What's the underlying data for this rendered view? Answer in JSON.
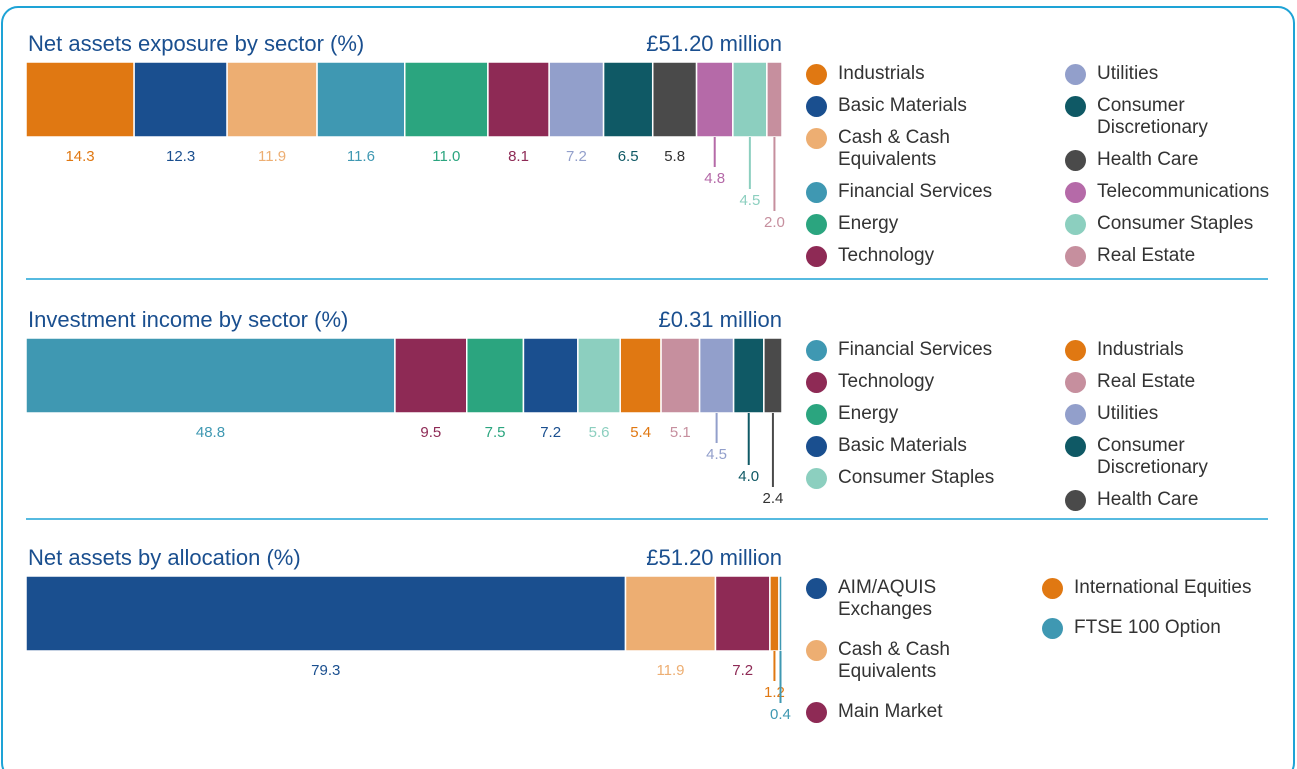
{
  "chart_data": [
    {
      "type": "stacked_bar",
      "title": "Net assets exposure by sector (%)",
      "subtitle": "£51.20 million",
      "legend_columns": 2,
      "series": [
        {
          "name": "Industrials",
          "color": "#e07812",
          "values": [
            14.3
          ]
        },
        {
          "name": "Basic Materials",
          "color": "#1a4f8f",
          "values": [
            12.3
          ]
        },
        {
          "name": "Cash & Cash Equivalents",
          "color": "#edae72",
          "values": [
            11.9
          ]
        },
        {
          "name": "Financial Services",
          "color": "#3f98b2",
          "values": [
            11.6
          ]
        },
        {
          "name": "Energy",
          "color": "#2ba57f",
          "values": [
            11
          ],
          "value_labels": [
            "11.0"
          ]
        },
        {
          "name": "Technology",
          "color": "#8e2a55",
          "values": [
            8.1
          ]
        },
        {
          "name": "Utilities",
          "color": "#929fcb",
          "values": [
            7.2
          ]
        },
        {
          "name": "Consumer Discretionary",
          "color": "#0f5965",
          "values": [
            6.5
          ]
        },
        {
          "name": "Health Care",
          "color": "#4a4a4a",
          "values": [
            5.8
          ]
        },
        {
          "name": "Telecommunications",
          "color": "#b56aa8",
          "values": [
            4.8
          ]
        },
        {
          "name": "Consumer Staples",
          "color": "#8ccfbf",
          "values": [
            4.5
          ]
        },
        {
          "name": "Real Estate",
          "color": "#c68f9e",
          "values": [
            2
          ],
          "value_labels": [
            "2.0"
          ]
        }
      ]
    },
    {
      "type": "stacked_bar",
      "title": "Investment income by sector (%)",
      "subtitle": "£0.31 million",
      "legend_columns": 2,
      "series": [
        {
          "name": "Financial Services",
          "color": "#3f98b2",
          "values": [
            48.8
          ]
        },
        {
          "name": "Technology",
          "color": "#8e2a55",
          "values": [
            9.5
          ]
        },
        {
          "name": "Energy",
          "color": "#2ba57f",
          "values": [
            7.5
          ]
        },
        {
          "name": "Basic Materials",
          "color": "#1a4f8f",
          "values": [
            7.2
          ]
        },
        {
          "name": "Consumer Staples",
          "color": "#8ccfbf",
          "values": [
            5.6
          ]
        },
        {
          "name": "Industrials",
          "color": "#e07812",
          "values": [
            5.4
          ]
        },
        {
          "name": "Real Estate",
          "color": "#c68f9e",
          "values": [
            5.1
          ]
        },
        {
          "name": "Utilities",
          "color": "#929fcb",
          "values": [
            4.5
          ]
        },
        {
          "name": "Consumer Discretionary",
          "color": "#0f5965",
          "values": [
            4
          ],
          "value_labels": [
            "4.0"
          ]
        },
        {
          "name": "Health Care",
          "color": "#4a4a4a",
          "values": [
            2.4
          ]
        }
      ]
    },
    {
      "type": "stacked_bar",
      "title": "Net assets by allocation (%)",
      "subtitle": "£51.20 million",
      "legend_columns": 2,
      "series": [
        {
          "name": "AIM/AQUIS Exchanges",
          "color": "#1a4f8f",
          "values": [
            79.3
          ]
        },
        {
          "name": "Cash & Cash Equivalents",
          "color": "#edae72",
          "values": [
            11.9
          ]
        },
        {
          "name": "Main Market",
          "color": "#8e2a55",
          "values": [
            7.2
          ]
        },
        {
          "name": "International Equities",
          "color": "#e07812",
          "values": [
            1.2
          ]
        },
        {
          "name": "FTSE 100 Option",
          "color": "#3f98b2",
          "values": [
            0.4
          ]
        }
      ]
    }
  ]
}
